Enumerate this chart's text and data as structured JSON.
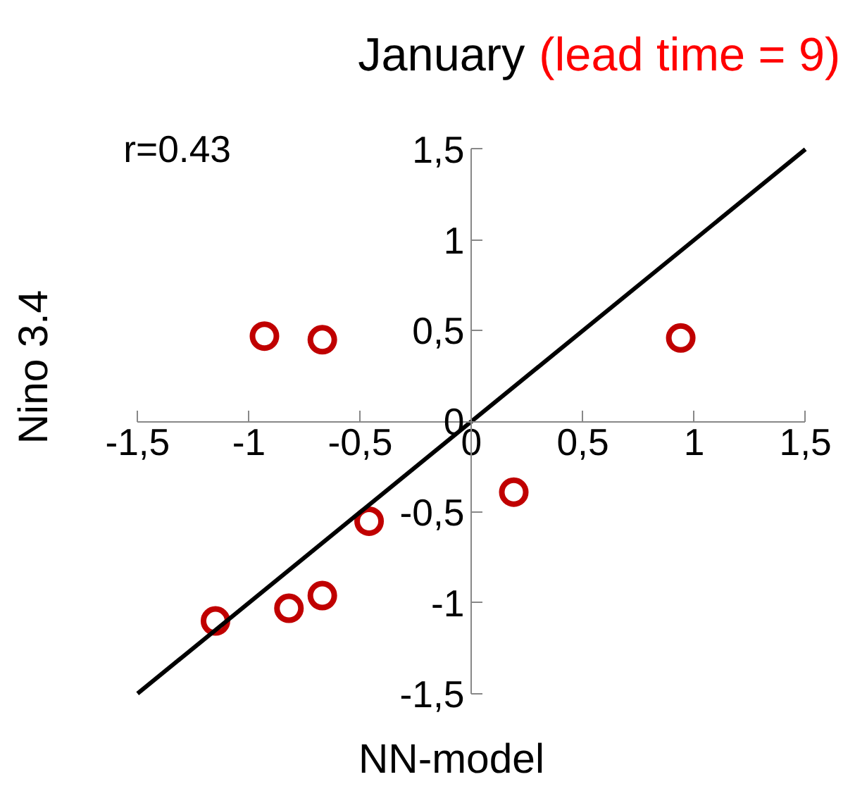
{
  "chart_data": {
    "type": "scatter",
    "title": "January",
    "subtitle": "(lead time = 9)",
    "xlabel": "NN-model",
    "ylabel": "Nino 3.4",
    "annotations": [
      "r=0.43"
    ],
    "x": [
      -0.93,
      -0.67,
      0.94,
      0.19,
      -0.46,
      -0.67,
      -0.82,
      -1.15
    ],
    "series": [
      {
        "color": "#c00000",
        "values": [
          0.47,
          0.45,
          0.46,
          -0.39,
          -0.55,
          -0.96,
          -1.03,
          -1.1
        ],
        "marker": "circle"
      },
      {
        "type": "line",
        "color": "#000000",
        "x": [
          -1.5,
          1.5
        ],
        "values": [
          -1.5,
          1.5
        ],
        "marker": "none"
      }
    ],
    "xlim": [
      -1.5,
      1.5
    ],
    "ylim": [
      -1.5,
      1.5
    ],
    "xticks": [
      {
        "value": -1.5,
        "label": "-1,5"
      },
      -1,
      {
        "value": -0.5,
        "label": "-0,5"
      },
      0,
      {
        "value": 0.5,
        "label": "0,5"
      },
      1,
      {
        "value": 1.5,
        "label": "1,5"
      }
    ],
    "yticks": [
      {
        "value": -1.5,
        "label": "-1,5"
      },
      -1,
      {
        "value": -0.5,
        "label": "-0,5"
      },
      0,
      {
        "value": 0.5,
        "label": "0,5"
      },
      1,
      {
        "value": 1.5,
        "label": "1,5"
      }
    ],
    "grid": false
  }
}
